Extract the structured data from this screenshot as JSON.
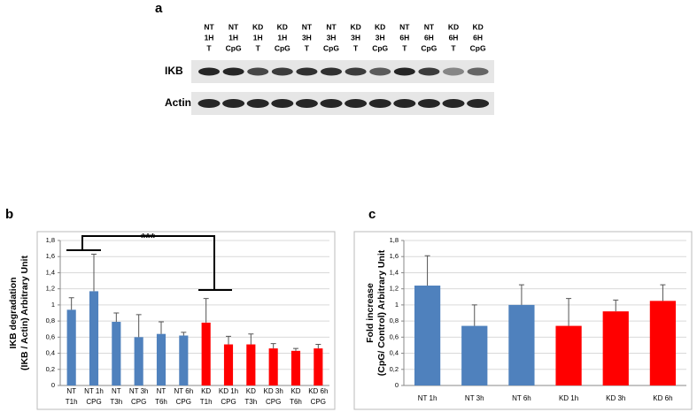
{
  "blot": {
    "label": "a",
    "lanes": [
      [
        "NT",
        "1H",
        "T"
      ],
      [
        "NT",
        "1H",
        "CpG"
      ],
      [
        "KD",
        "1H",
        "T"
      ],
      [
        "KD",
        "1H",
        "CpG"
      ],
      [
        "NT",
        "3H",
        "T"
      ],
      [
        "NT",
        "3H",
        "CpG"
      ],
      [
        "KD",
        "3H",
        "T"
      ],
      [
        "KD",
        "3H",
        "CpG"
      ],
      [
        "NT",
        "6H",
        "T"
      ],
      [
        "NT",
        "6H",
        "CpG"
      ],
      [
        "KD",
        "6H",
        "T"
      ],
      [
        "KD",
        "6H",
        "CpG"
      ]
    ],
    "rows": [
      "IKB",
      "Actin"
    ]
  },
  "chart_data": [
    {
      "type": "bar",
      "label": "b",
      "ylabel": [
        "IKB degradation",
        "(IKB / Actin) Arbitrary Unit"
      ],
      "categories": [
        [
          "NT",
          "T1h"
        ],
        [
          "NT 1h",
          "CPG"
        ],
        [
          "NT",
          "T3h"
        ],
        [
          "NT 3h",
          "CPG"
        ],
        [
          "NT",
          "T6h"
        ],
        [
          "NT 6h",
          "CPG"
        ],
        [
          "KD",
          "T1h"
        ],
        [
          "KD 1h",
          "CPG"
        ],
        [
          "KD",
          "T3h"
        ],
        [
          "KD 3h",
          "CPG"
        ],
        [
          "KD",
          "T6h"
        ],
        [
          "KD 6h",
          "CPG"
        ]
      ],
      "values": [
        0.94,
        1.17,
        0.79,
        0.6,
        0.64,
        0.62,
        0.78,
        0.51,
        0.51,
        0.46,
        0.43,
        0.46
      ],
      "errors": [
        0.15,
        0.46,
        0.11,
        0.28,
        0.15,
        0.04,
        0.3,
        0.1,
        0.13,
        0.06,
        0.03,
        0.05
      ],
      "colors": [
        "#4f81bd",
        "#4f81bd",
        "#4f81bd",
        "#4f81bd",
        "#4f81bd",
        "#4f81bd",
        "#ff0000",
        "#ff0000",
        "#ff0000",
        "#ff0000",
        "#ff0000",
        "#ff0000"
      ],
      "annotation": "***",
      "ylim": [
        0,
        1.8
      ],
      "yticks": [
        0,
        {
          "value": 0.2,
          "label": "0,2"
        },
        {
          "value": 0.4,
          "label": "0,4"
        },
        {
          "value": 0.6,
          "label": "0,6"
        },
        {
          "value": 0.8,
          "label": "0,8"
        },
        1,
        {
          "value": 1.2,
          "label": "1,2"
        },
        {
          "value": 1.4,
          "label": "1,4"
        },
        {
          "value": 1.6,
          "label": "1,6"
        },
        {
          "value": 1.8,
          "label": "1,8"
        }
      ],
      "grid": true
    },
    {
      "type": "bar",
      "label": "c",
      "ylabel": [
        "Fold increase",
        "(CpG/ Control) Arbitrary Unit"
      ],
      "categories": [
        [
          "NT 1h"
        ],
        [
          "NT 3h"
        ],
        [
          "NT 6h"
        ],
        [
          "KD 1h"
        ],
        [
          "KD 3h"
        ],
        [
          "KD 6h"
        ]
      ],
      "values": [
        1.24,
        0.74,
        1.0,
        0.74,
        0.92,
        1.05
      ],
      "errors": [
        0.37,
        0.26,
        0.25,
        0.34,
        0.14,
        0.2
      ],
      "colors": [
        "#4f81bd",
        "#4f81bd",
        "#4f81bd",
        "#ff0000",
        "#ff0000",
        "#ff0000"
      ],
      "ylim": [
        0,
        1.8
      ],
      "yticks": [
        0,
        {
          "value": 0.2,
          "label": "0,2"
        },
        {
          "value": 0.4,
          "label": "0,4"
        },
        {
          "value": 0.6,
          "label": "0,6"
        },
        {
          "value": 0.8,
          "label": "0,8"
        },
        1,
        {
          "value": 1.2,
          "label": "1,2"
        },
        {
          "value": 1.4,
          "label": "1,4"
        },
        {
          "value": 1.6,
          "label": "1,6"
        },
        {
          "value": 1.8,
          "label": "1,8"
        }
      ],
      "grid": true
    }
  ]
}
